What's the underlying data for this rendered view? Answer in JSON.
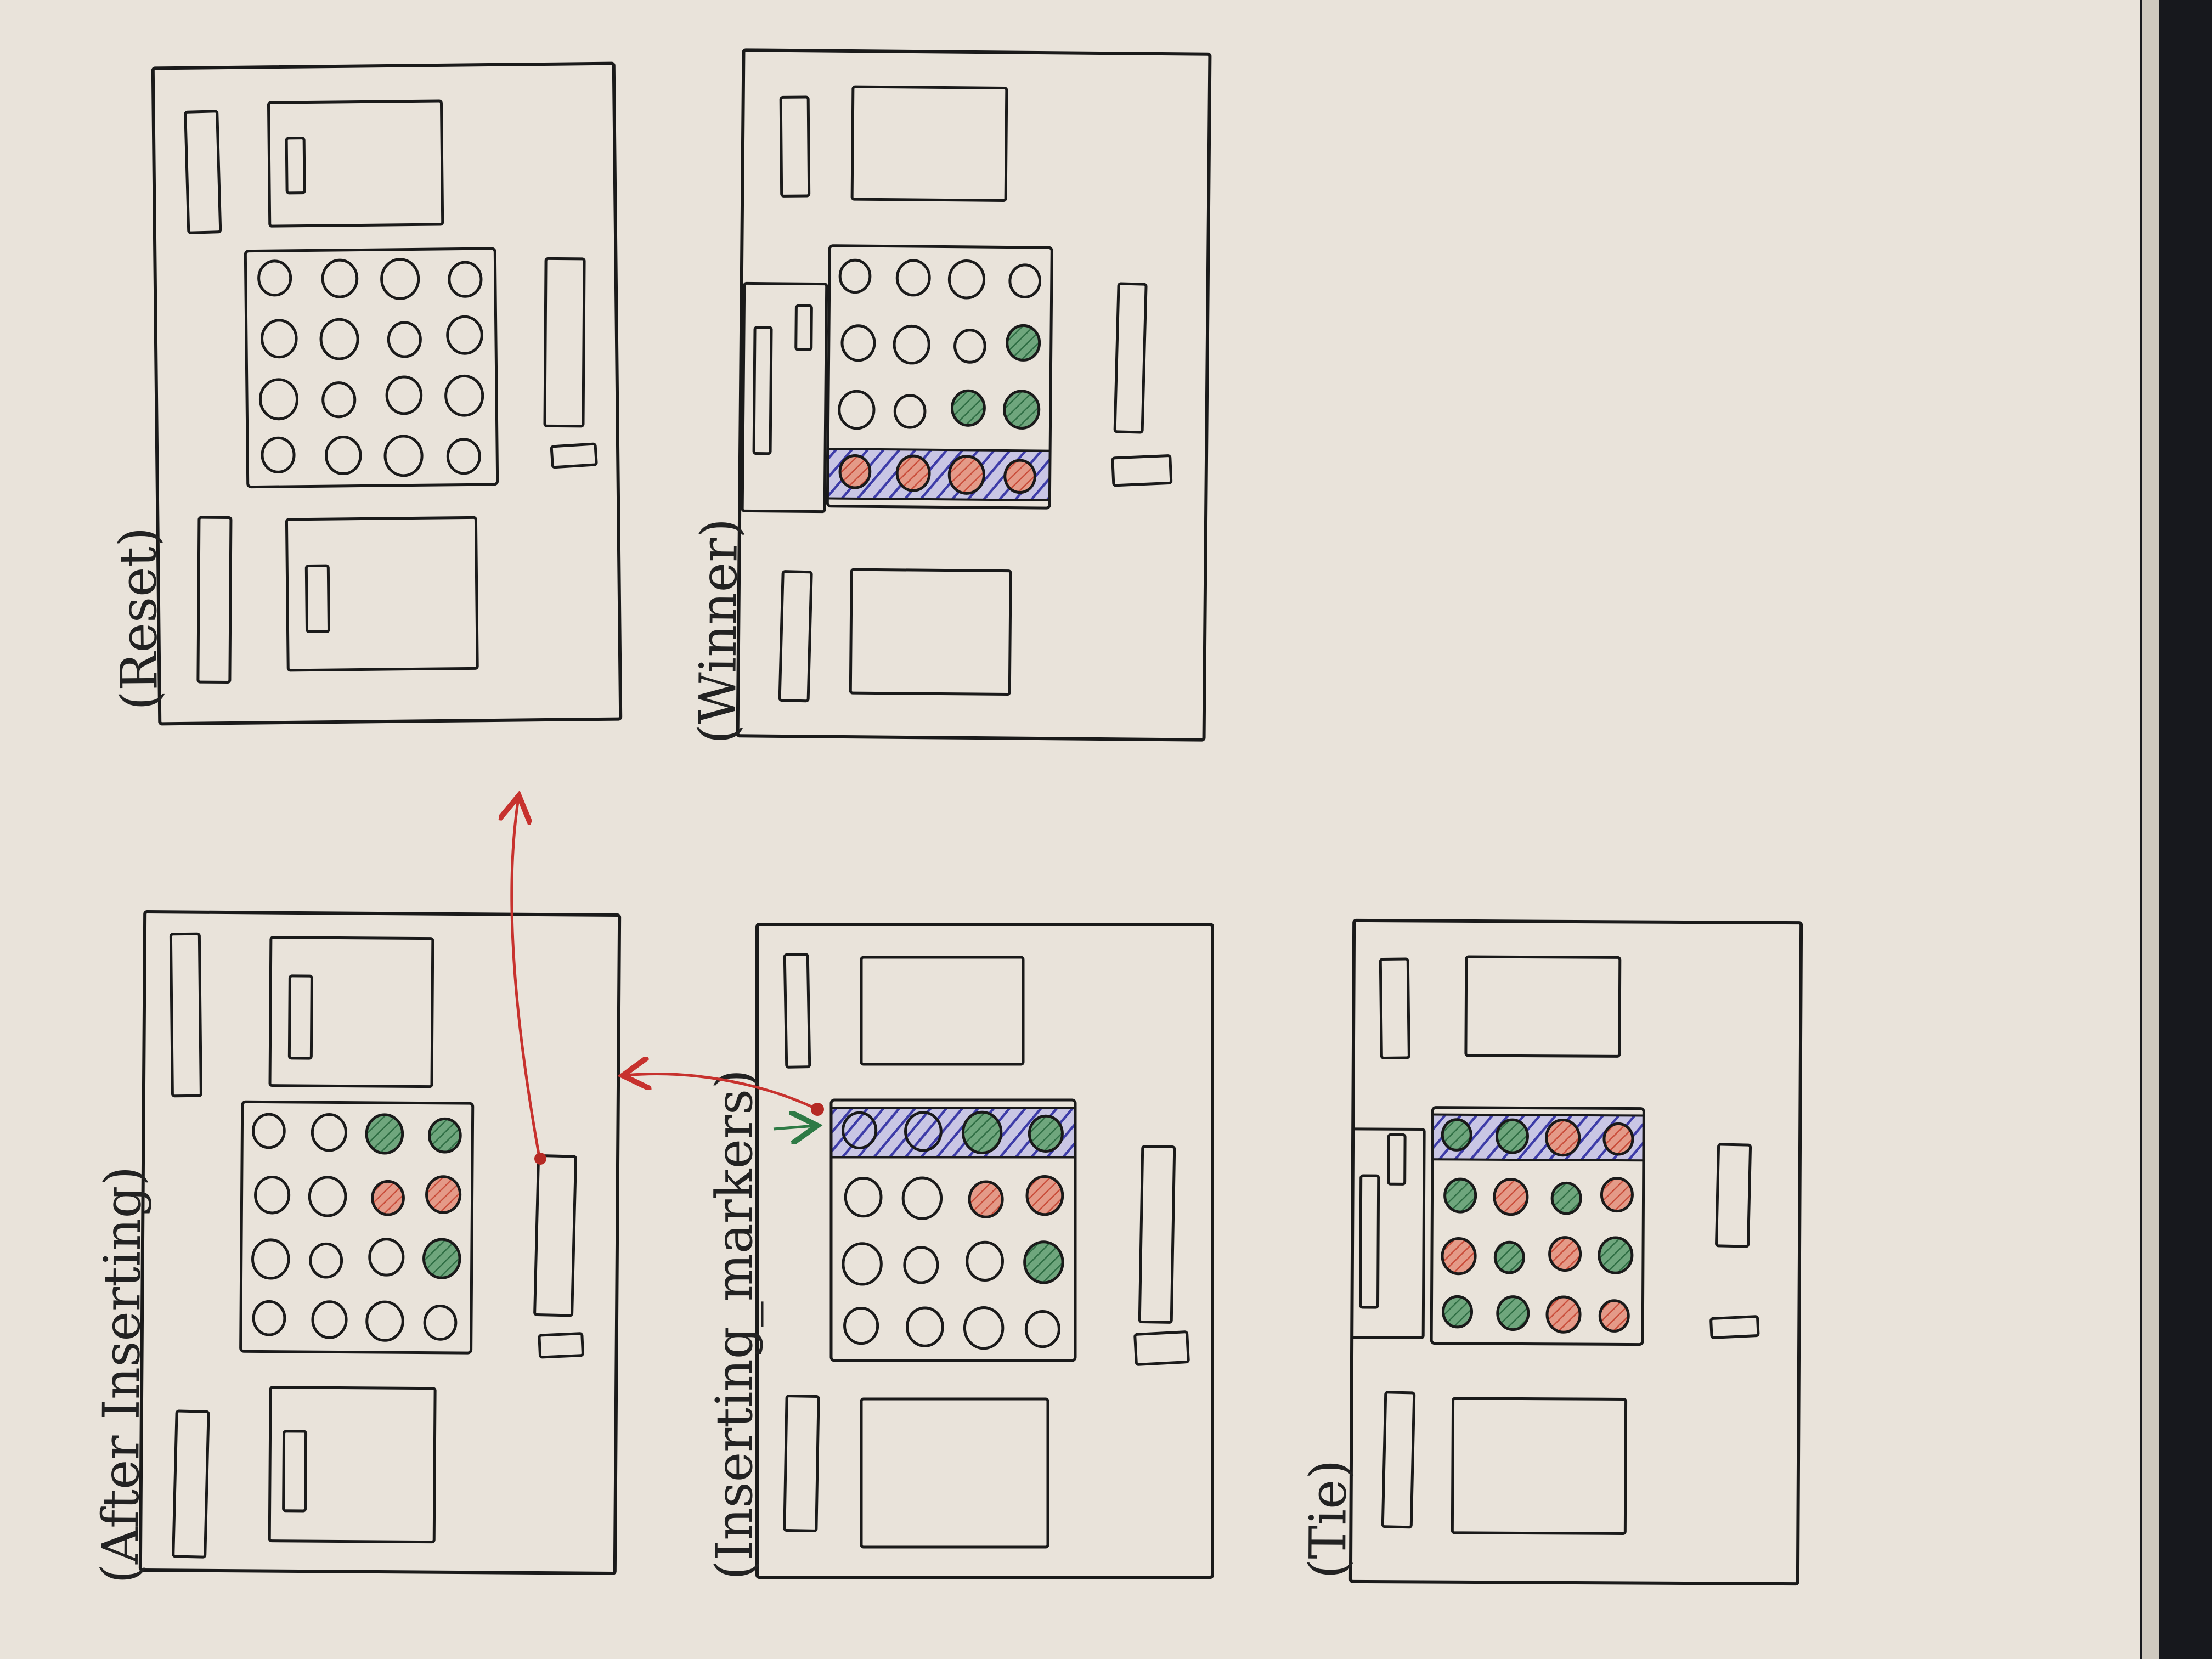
{
  "colors": {
    "paper": "#e9e3da",
    "ink": "#1a1a1a",
    "red_marker": "#d9644f",
    "green_marker": "#3f8556",
    "blue_highlight": "#3d3ca8",
    "arrow_red": "#c7322e",
    "arrow_green": "#2e7a45"
  },
  "icons": {
    "red_marker": "red-circle",
    "green_marker": "green-circle",
    "empty_slot": "empty-circle"
  },
  "sketches": [
    {
      "id": "reset",
      "caption": "(Reset)",
      "board": [
        [
          "e",
          "e",
          "e",
          "e"
        ],
        [
          "e",
          "e",
          "e",
          "e"
        ],
        [
          "e",
          "e",
          "e",
          "e"
        ],
        [
          "e",
          "e",
          "e",
          "e"
        ]
      ],
      "highlight_row": null
    },
    {
      "id": "winner",
      "caption": "(Winner)",
      "board": [
        [
          "e",
          "e",
          "e",
          "e"
        ],
        [
          "e",
          "e",
          "e",
          "g"
        ],
        [
          "e",
          "e",
          "g",
          "g"
        ],
        [
          "r",
          "r",
          "r",
          "r"
        ]
      ],
      "highlight_row": 3
    },
    {
      "id": "after-inserting",
      "caption": "(After Inserting)",
      "board": [
        [
          "e",
          "e",
          "g",
          "g"
        ],
        [
          "e",
          "e",
          "r",
          "r"
        ],
        [
          "e",
          "e",
          "e",
          "g"
        ],
        [
          "e",
          "e",
          "e",
          "e"
        ]
      ],
      "highlight_row": null
    },
    {
      "id": "inserting-markers",
      "caption": "(Inserting_markers)",
      "board": [
        [
          "e",
          "e",
          "g",
          "g"
        ],
        [
          "e",
          "e",
          "r",
          "r"
        ],
        [
          "e",
          "e",
          "e",
          "g"
        ],
        [
          "e",
          "e",
          "e",
          "e"
        ]
      ],
      "highlight_row": 0
    },
    {
      "id": "tie",
      "caption": "(Tie)",
      "board": [
        [
          "g",
          "g",
          "r",
          "r"
        ],
        [
          "g",
          "r",
          "g",
          "r"
        ],
        [
          "r",
          "g",
          "r",
          "g"
        ],
        [
          "g",
          "g",
          "r",
          "r"
        ]
      ],
      "highlight_row": 0
    }
  ]
}
